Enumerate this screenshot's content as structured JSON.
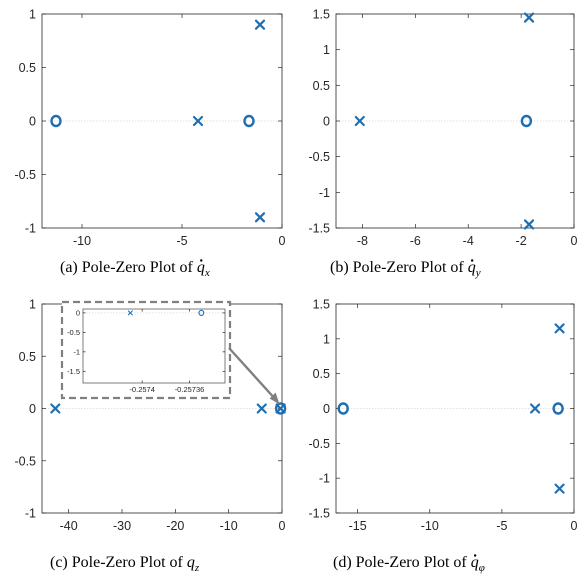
{
  "colors": {
    "marker": "#1f6fb0",
    "axis": "#262626",
    "zero_line": "#d9d9d9",
    "inset_box": "#808080",
    "arrow": "#808080"
  },
  "chart_data": [
    {
      "id": "a",
      "type": "scatter",
      "caption": {
        "prefix": "(a) Pole-Zero Plot of ",
        "var": "q",
        "sub": "x",
        "dot": true
      },
      "xlim": [
        -12,
        0
      ],
      "ylim": [
        -1,
        1
      ],
      "xticks": [
        -10,
        -5,
        0
      ],
      "xtick_labels": [
        "-10",
        "-5",
        "0"
      ],
      "yticks": [
        -1,
        -0.5,
        0,
        0.5,
        1
      ],
      "ytick_labels": [
        "-1",
        "-0.5",
        "0",
        "0.5",
        "1"
      ],
      "poles": [
        [
          -1.1,
          0.9
        ],
        [
          -4.2,
          0.0
        ],
        [
          -1.1,
          -0.9
        ]
      ],
      "zeros": [
        [
          -11.3,
          0.0
        ],
        [
          -1.65,
          0.0
        ]
      ]
    },
    {
      "id": "b",
      "type": "scatter",
      "caption": {
        "prefix": "(b) Pole-Zero Plot of ",
        "var": "q",
        "sub": "y",
        "dot": true
      },
      "xlim": [
        -9,
        0
      ],
      "ylim": [
        -1.5,
        1.5
      ],
      "xticks": [
        -8,
        -6,
        -4,
        -2,
        0
      ],
      "xtick_labels": [
        "-8",
        "-6",
        "-4",
        "-2",
        "0"
      ],
      "yticks": [
        -1.5,
        -1,
        -0.5,
        0,
        0.5,
        1,
        1.5
      ],
      "ytick_labels": [
        "-1.5",
        "-1",
        "-0.5",
        "0",
        "0.5",
        "1",
        "1.5"
      ],
      "poles": [
        [
          -1.7,
          1.45
        ],
        [
          -8.1,
          0.0
        ],
        [
          -1.7,
          -1.45
        ]
      ],
      "zeros": [
        [
          -1.8,
          0.0
        ]
      ]
    },
    {
      "id": "c",
      "type": "scatter",
      "caption": {
        "prefix": "(c) Pole-Zero Plot of ",
        "var": "q",
        "sub": "z",
        "dot": false
      },
      "xlim": [
        -45,
        0
      ],
      "ylim": [
        -1,
        1
      ],
      "xticks": [
        -40,
        -30,
        -20,
        -10,
        0
      ],
      "xtick_labels": [
        "-40",
        "-30",
        "-20",
        "-10",
        "0"
      ],
      "yticks": [
        -1,
        -0.5,
        0,
        0.5,
        1
      ],
      "ytick_labels": [
        "-1",
        "-0.5",
        "0",
        "0.5",
        "1"
      ],
      "poles": [
        [
          -42.5,
          0.0
        ],
        [
          -3.8,
          0.0
        ],
        [
          -0.26,
          0.0
        ]
      ],
      "zeros": [
        [
          -0.26,
          0.0
        ]
      ],
      "inset": {
        "xlim": [
          -0.25745,
          -0.25733
        ],
        "ylim": [
          -1.8,
          0.1
        ],
        "xticks": [
          -0.2574,
          -0.25736
        ],
        "xtick_labels": [
          "-0.2574",
          "-0.25736"
        ],
        "yticks": [
          0,
          -0.5,
          -1,
          -1.5
        ],
        "ytick_labels": [
          "0",
          "-0.5",
          "-1",
          "-1.5"
        ],
        "poles": [
          [
            -0.25741,
            0.0
          ]
        ],
        "zeros": [
          [
            -0.25735,
            0.0
          ]
        ]
      }
    },
    {
      "id": "d",
      "type": "scatter",
      "caption": {
        "prefix": "(d) Pole-Zero Plot of ",
        "var": "q",
        "sub": "φ",
        "dot": true
      },
      "xlim": [
        -16.5,
        0
      ],
      "ylim": [
        -1.5,
        1.5
      ],
      "xticks": [
        -15,
        -10,
        -5,
        0
      ],
      "xtick_labels": [
        "-15",
        "-10",
        "-5",
        "0"
      ],
      "yticks": [
        -1.5,
        -1,
        -0.5,
        0,
        0.5,
        1,
        1.5
      ],
      "ytick_labels": [
        "-1.5",
        "-1",
        "-0.5",
        "0",
        "0.5",
        "1",
        "1.5"
      ],
      "poles": [
        [
          -1.0,
          1.15
        ],
        [
          -2.7,
          0.0
        ],
        [
          -1.0,
          -1.15
        ]
      ],
      "zeros": [
        [
          -16.0,
          0.0
        ],
        [
          -1.1,
          0.0
        ]
      ]
    }
  ]
}
